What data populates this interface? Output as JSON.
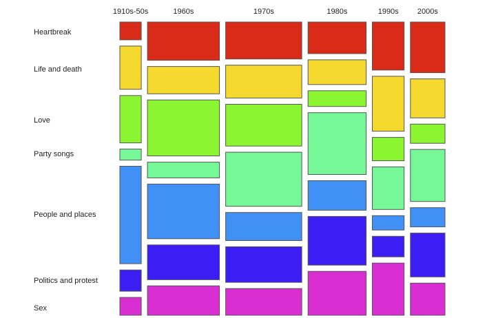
{
  "chart_data": {
    "type": "mosaic",
    "title": "",
    "categories": [
      "1910s-50s",
      "1960s",
      "1970s",
      "1980s",
      "1990s",
      "2000s"
    ],
    "column_share": [
      31,
      104,
      110,
      84,
      46,
      50
    ],
    "series": [
      {
        "name": "Heartbreak",
        "color": "#d92b17",
        "values": [
          26,
          56,
          54,
          46,
          70,
          74
        ]
      },
      {
        "name": "Life and death",
        "color": "#f5d92e",
        "values": [
          63,
          40,
          48,
          36,
          80,
          57
        ]
      },
      {
        "name": "Love",
        "color": "#8af530",
        "values": [
          69,
          82,
          61,
          23,
          34,
          28
        ]
      },
      {
        "name": "Party songs",
        "color": "#76f898",
        "values": [
          16,
          23,
          79,
          90,
          62,
          76
        ]
      },
      {
        "name": "People and places",
        "color": "#4190f5",
        "values": [
          142,
          80,
          41,
          43,
          21,
          28
        ]
      },
      {
        "name": "Politics and protest",
        "color": "#3c1ef5",
        "values": [
          31,
          51,
          52,
          71,
          30,
          64
        ]
      },
      {
        "name": "Sex",
        "color": "#d92ed2",
        "values": [
          26,
          43,
          39,
          64,
          76,
          47
        ]
      }
    ],
    "legend": "left",
    "grid": false
  }
}
